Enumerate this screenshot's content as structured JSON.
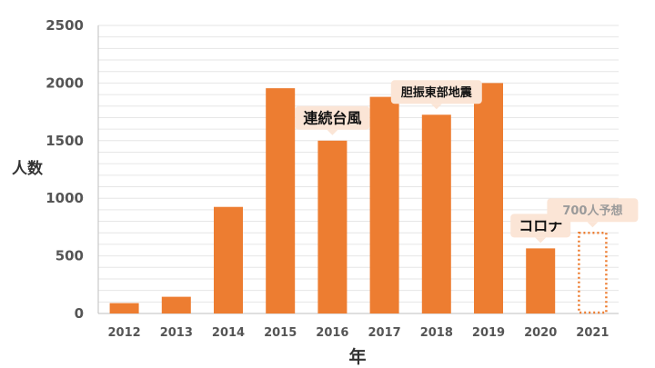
{
  "chart_data": {
    "type": "bar",
    "xlabel": "年",
    "ylabel": "人数",
    "ylim": [
      0,
      2500
    ],
    "yticks": [
      0,
      500,
      1000,
      1500,
      2000,
      2500
    ],
    "grid": true,
    "categories": [
      "2012",
      "2013",
      "2014",
      "2015",
      "2016",
      "2017",
      "2018",
      "2019",
      "2020",
      "2021"
    ],
    "values": [
      90,
      145,
      925,
      1955,
      1500,
      1880,
      1725,
      2000,
      565,
      700
    ],
    "bar_styles": [
      "solid",
      "solid",
      "solid",
      "solid",
      "solid",
      "solid",
      "solid",
      "solid",
      "solid",
      "dotted-outline"
    ],
    "annotations": [
      {
        "category": "2016",
        "text": "連続台風",
        "style": "light"
      },
      {
        "category": "2018",
        "text": "胆振東部地震",
        "style": "light"
      },
      {
        "category": "2020",
        "text": "コロナ",
        "style": "light"
      },
      {
        "category": "2021",
        "text": "700人予想",
        "style": "muted"
      }
    ]
  },
  "colors": {
    "bar": "#ED7D31",
    "grid": "#E6E6E6",
    "axis": "#BFBFBF",
    "callout_bg": "#FBE5D6",
    "callout_text": "#111111",
    "forecast_text": "#9A9A9A"
  }
}
